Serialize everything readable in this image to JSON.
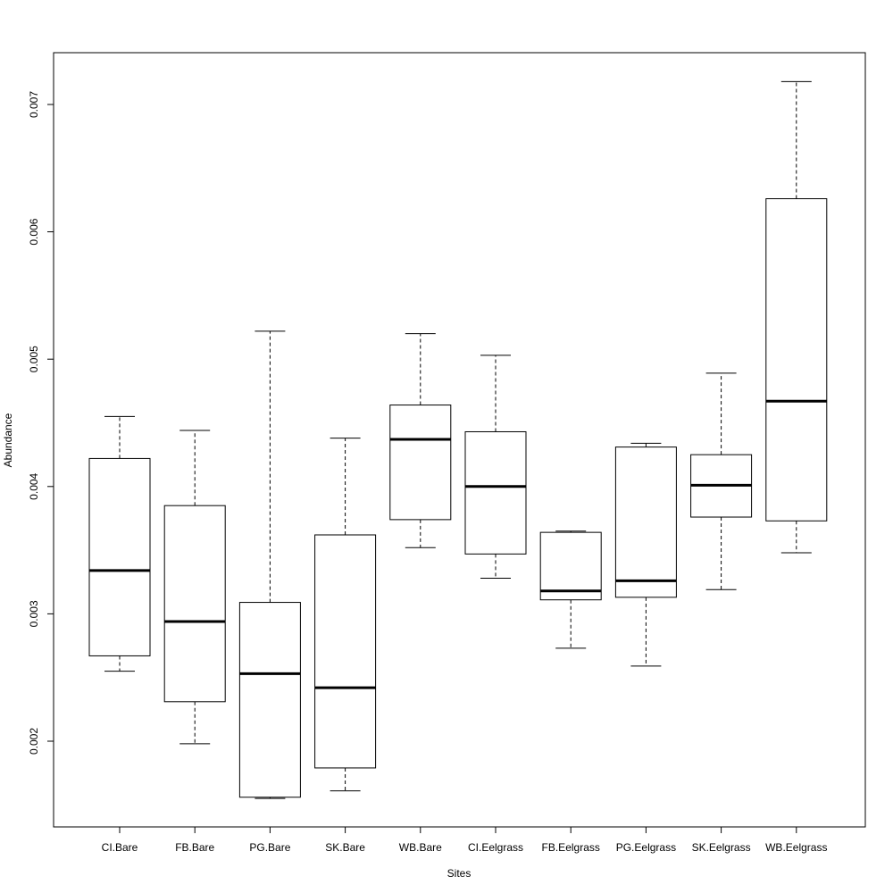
{
  "chart_data": {
    "type": "boxplot",
    "title": "",
    "xlabel": "Sites",
    "ylabel": "Abundance",
    "ylim": [
      0.00148,
      0.0074
    ],
    "yticks": [
      0.002,
      0.003,
      0.004,
      0.005,
      0.006,
      0.007
    ],
    "ytick_labels": [
      "0.002",
      "0.003",
      "0.004",
      "0.005",
      "0.006",
      "0.007"
    ],
    "grid": false,
    "legend": "none",
    "categories": [
      "CI.Bare",
      "FB.Bare",
      "PG.Bare",
      "SK.Bare",
      "WB.Bare",
      "CI.Eelgrass",
      "FB.Eelgrass",
      "PG.Eelgrass",
      "SK.Eelgrass",
      "WB.Eelgrass"
    ],
    "boxes": [
      {
        "whisker_low": 0.00255,
        "q1": 0.00267,
        "median": 0.00334,
        "q3": 0.00422,
        "whisker_high": 0.00455
      },
      {
        "whisker_low": 0.00198,
        "q1": 0.00231,
        "median": 0.00294,
        "q3": 0.00385,
        "whisker_high": 0.00444
      },
      {
        "whisker_low": 0.00155,
        "q1": 0.00156,
        "median": 0.00253,
        "q3": 0.00309,
        "whisker_high": 0.00522
      },
      {
        "whisker_low": 0.00161,
        "q1": 0.00179,
        "median": 0.00242,
        "q3": 0.00362,
        "whisker_high": 0.00438
      },
      {
        "whisker_low": 0.00352,
        "q1": 0.00374,
        "median": 0.00437,
        "q3": 0.00464,
        "whisker_high": 0.0052
      },
      {
        "whisker_low": 0.00328,
        "q1": 0.00347,
        "median": 0.004,
        "q3": 0.00443,
        "whisker_high": 0.00503
      },
      {
        "whisker_low": 0.00273,
        "q1": 0.00311,
        "median": 0.00318,
        "q3": 0.00364,
        "whisker_high": 0.00365
      },
      {
        "whisker_low": 0.00259,
        "q1": 0.00313,
        "median": 0.00326,
        "q3": 0.00431,
        "whisker_high": 0.00434
      },
      {
        "whisker_low": 0.00319,
        "q1": 0.00376,
        "median": 0.00401,
        "q3": 0.00425,
        "whisker_high": 0.00489
      },
      {
        "whisker_low": 0.00348,
        "q1": 0.00373,
        "median": 0.00467,
        "q3": 0.00626,
        "whisker_high": 0.00718
      }
    ]
  }
}
